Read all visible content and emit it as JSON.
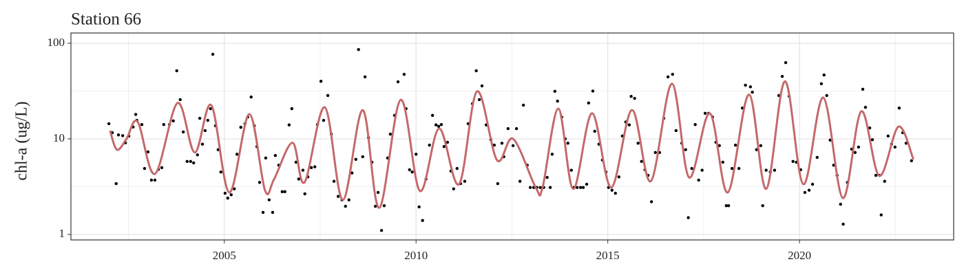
{
  "chart_data": {
    "type": "scatter",
    "title": "Station 66",
    "y_label": "chl-a (ug/L)",
    "log_y": true,
    "grid": true,
    "xlim": [
      2001,
      2024.02
    ],
    "ylim": [
      0.876,
      128
    ],
    "xticks": [
      2005,
      2010,
      2015,
      2020
    ],
    "yticks": [
      1,
      10,
      100
    ],
    "minor_xticks": [
      2002.5,
      2007.5,
      2012.5,
      2017.5,
      2022.5
    ],
    "minor_yticks": [
      3.16,
      31.6
    ],
    "series": [
      {
        "type": "scatter",
        "color": "#000000",
        "x": [
          2001.99,
          2002.08,
          2002.18,
          2002.24,
          2002.35,
          2002.42,
          2002.51,
          2002.62,
          2002.69,
          2002.72,
          2002.85,
          2002.92,
          2003.01,
          2003.1,
          2003.19,
          2003.28,
          2003.37,
          2003.42,
          2003.57,
          2003.67,
          2003.76,
          2003.85,
          2003.93,
          2004.03,
          2004.12,
          2004.2,
          2004.3,
          2004.36,
          2004.43,
          2004.5,
          2004.57,
          2004.64,
          2004.7,
          2004.77,
          2004.84,
          2004.91,
          2005.02,
          2005.09,
          2005.18,
          2005.26,
          2005.33,
          2005.43,
          2005.54,
          2005.61,
          2005.7,
          2005.78,
          2005.85,
          2005.92,
          2006.01,
          2006.08,
          2006.17,
          2006.26,
          2006.33,
          2006.42,
          2006.51,
          2006.58,
          2006.69,
          2006.76,
          2006.87,
          2006.94,
          2007.05,
          2007.1,
          2007.18,
          2007.27,
          2007.36,
          2007.43,
          2007.52,
          2007.59,
          2007.7,
          2007.79,
          2007.86,
          2007.97,
          2008.07,
          2008.16,
          2008.25,
          2008.33,
          2008.43,
          2008.5,
          2008.61,
          2008.67,
          2008.76,
          2008.85,
          2008.94,
          2009.01,
          2009.1,
          2009.17,
          2009.26,
          2009.33,
          2009.44,
          2009.53,
          2009.69,
          2009.74,
          2009.83,
          2009.9,
          2010.0,
          2010.08,
          2010.17,
          2010.26,
          2010.35,
          2010.43,
          2010.52,
          2010.59,
          2010.66,
          2010.73,
          2010.82,
          2010.91,
          2010.98,
          2011.07,
          2011.16,
          2011.27,
          2011.36,
          2011.47,
          2011.57,
          2011.65,
          2011.72,
          2011.83,
          2011.95,
          2012.04,
          2012.13,
          2012.24,
          2012.29,
          2012.4,
          2012.53,
          2012.62,
          2012.71,
          2012.8,
          2012.9,
          2012.98,
          2013.07,
          2013.15,
          2013.24,
          2013.33,
          2013.42,
          2013.5,
          2013.55,
          2013.62,
          2013.69,
          2013.8,
          2013.89,
          2013.96,
          2014.05,
          2014.12,
          2014.2,
          2014.29,
          2014.36,
          2014.45,
          2014.5,
          2014.61,
          2014.66,
          2014.77,
          2014.86,
          2014.95,
          2015.02,
          2015.11,
          2015.2,
          2015.29,
          2015.38,
          2015.47,
          2015.56,
          2015.61,
          2015.7,
          2015.79,
          2015.88,
          2015.97,
          2016.05,
          2016.14,
          2016.24,
          2016.35,
          2016.46,
          2016.57,
          2016.69,
          2016.78,
          2016.93,
          2017.03,
          2017.1,
          2017.19,
          2017.28,
          2017.37,
          2017.46,
          2017.54,
          2017.63,
          2017.73,
          2017.82,
          2017.91,
          2018.0,
          2018.09,
          2018.15,
          2018.24,
          2018.33,
          2018.42,
          2018.51,
          2018.59,
          2018.72,
          2018.77,
          2018.88,
          2018.99,
          2019.04,
          2019.13,
          2019.24,
          2019.35,
          2019.46,
          2019.55,
          2019.64,
          2019.73,
          2019.83,
          2019.92,
          2020.03,
          2020.14,
          2020.25,
          2020.34,
          2020.46,
          2020.57,
          2020.64,
          2020.71,
          2020.8,
          2020.89,
          2020.98,
          2021.07,
          2021.14,
          2021.25,
          2021.36,
          2021.45,
          2021.54,
          2021.65,
          2021.72,
          2021.83,
          2021.9,
          2021.99,
          2022.08,
          2022.13,
          2022.22,
          2022.31,
          2022.4,
          2022.49,
          2022.6,
          2022.69,
          2022.78,
          2022.92
        ],
        "values": [
          14.4,
          11.6,
          3.4,
          11,
          10.8,
          9.1,
          10.7,
          13.3,
          18,
          15.6,
          14.1,
          4.9,
          7.3,
          3.7,
          3.7,
          4.8,
          5,
          14.1,
          14.1,
          15.4,
          51.5,
          25.7,
          11.8,
          5.8,
          5.8,
          5.6,
          6.8,
          16.4,
          8.8,
          12.2,
          15.6,
          20.7,
          76.6,
          13.7,
          7.7,
          4.5,
          2.7,
          2.4,
          2.6,
          3,
          6.9,
          13.2,
          14.4,
          16.9,
          27.4,
          13.7,
          8.3,
          3.5,
          1.7,
          6.3,
          2.3,
          1.7,
          6.7,
          5.3,
          2.8,
          2.8,
          14,
          20.7,
          5.7,
          3.8,
          4.7,
          2.66,
          4,
          5,
          5.1,
          14.1,
          40,
          15.6,
          28.4,
          11.2,
          3.6,
          2.5,
          2.3,
          1.97,
          2.3,
          4.4,
          6.1,
          86,
          6.5,
          44.5,
          10.3,
          5.7,
          1.97,
          2.75,
          1.1,
          2,
          6.3,
          11.2,
          17.6,
          39.5,
          47.3,
          20.7,
          4.75,
          4.5,
          6.9,
          1.94,
          1.4,
          3.8,
          8.6,
          17.6,
          14,
          13.5,
          14.1,
          8.3,
          9.2,
          4.6,
          3,
          4.9,
          3.4,
          3.6,
          14.4,
          23.3,
          51.5,
          25.7,
          35.8,
          14,
          9.8,
          8.6,
          3.4,
          9,
          6.5,
          12.8,
          8.5,
          12.8,
          3.6,
          22.5,
          5.3,
          3.1,
          3.1,
          3.1,
          3.1,
          3.1,
          3.95,
          3.1,
          6.9,
          31.4,
          24.8,
          16.9,
          10,
          9,
          4.7,
          3.1,
          3.1,
          3.1,
          3.1,
          3.35,
          23.7,
          31.6,
          12,
          8.8,
          6,
          4.5,
          3.1,
          2.9,
          2.7,
          4,
          10.7,
          15,
          14,
          27.8,
          26.5,
          9,
          5.8,
          4.75,
          4.15,
          2.2,
          7.2,
          7.2,
          16.4,
          44.5,
          47.3,
          12.2,
          9,
          7.7,
          1.5,
          4.9,
          14.1,
          3.7,
          4.7,
          18.5,
          18.5,
          16.9,
          9.2,
          8.5,
          5.7,
          2,
          2,
          4.9,
          8.6,
          4.9,
          21,
          36.4,
          35,
          30.8,
          7.7,
          8.5,
          2,
          4.7,
          4.5,
          4.7,
          28.4,
          45,
          62.7,
          27.9,
          5.8,
          5.7,
          4.75,
          2.75,
          2.9,
          3.35,
          6.4,
          37.7,
          46.6,
          28.4,
          9.7,
          5.3,
          4.15,
          2.07,
          1.28,
          3.5,
          7.8,
          7.2,
          8.2,
          33,
          21.4,
          13,
          9.8,
          4.15,
          4.15,
          1.6,
          3.6,
          10.7,
          8.8,
          8.2,
          21,
          11.6,
          9,
          5.9
        ]
      },
      {
        "type": "line",
        "color": "#c4686a",
        "x": [
          2002.02,
          2002.2,
          2002.45,
          2002.74,
          2003.19,
          2003.78,
          2004.23,
          2004.66,
          2005.13,
          2005.65,
          2006.06,
          2006.3,
          2006.78,
          2007.09,
          2007.62,
          2008.09,
          2008.61,
          2009.04,
          2009.6,
          2010.1,
          2010.6,
          2011.12,
          2011.59,
          2012.11,
          2012.53,
          2013.12,
          2013.3,
          2013.71,
          2014.1,
          2014.59,
          2015.09,
          2015.63,
          2016.12,
          2016.67,
          2017.12,
          2017.66,
          2018.13,
          2018.68,
          2019.13,
          2019.62,
          2020.1,
          2020.62,
          2021.13,
          2021.61,
          2022.08,
          2022.58,
          2022.97
        ],
        "values": [
          12.2,
          7.7,
          10,
          15.1,
          4.3,
          23.7,
          7.2,
          22.5,
          2.75,
          18.1,
          2.9,
          3.8,
          9.1,
          3.5,
          21.4,
          2.3,
          20,
          1.9,
          25.6,
          2.85,
          12.8,
          3.35,
          31.4,
          6,
          10,
          3.1,
          3.1,
          20.7,
          3,
          18.5,
          3.1,
          20,
          3.6,
          37.7,
          3.95,
          18.5,
          2.75,
          29,
          3,
          40,
          3.35,
          27,
          2.4,
          19.4,
          4.1,
          13.4,
          6.1
        ]
      }
    ]
  }
}
